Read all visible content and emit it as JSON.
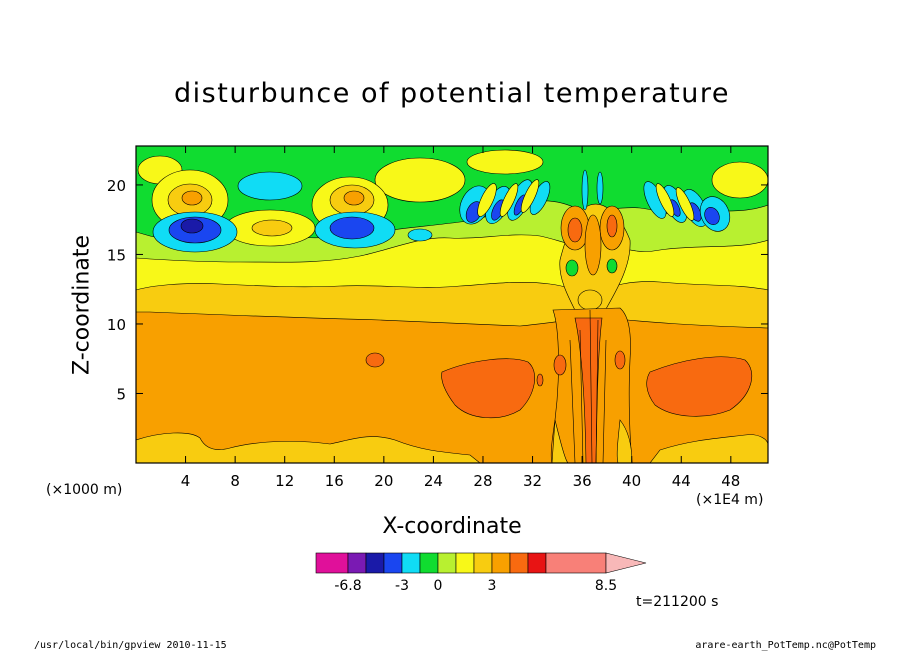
{
  "chart_data": {
    "type": "heatmap",
    "title": "disturbunce of potential temperature",
    "xlabel": "X-coordinate",
    "ylabel": "Z-coordinate",
    "x_unit": "(×1000 m)",
    "x_unit_right": "(×1E4 m)",
    "xlim": [
      0,
      51
    ],
    "ylim": [
      0,
      22.8
    ],
    "x_ticks": [
      4,
      8,
      12,
      16,
      20,
      24,
      28,
      32,
      36,
      40,
      44,
      48
    ],
    "y_ticks": [
      5,
      10,
      15,
      20
    ],
    "colorbar": {
      "colors": [
        "#e0109a",
        "#7a1ab3",
        "#1a1aa8",
        "#1a46f0",
        "#10dcf5",
        "#10dc30",
        "#b8f030",
        "#f8f818",
        "#f8cc10",
        "#f8a000",
        "#f86a10",
        "#e81414",
        "#f88078"
      ],
      "tick_labels": [
        "-6.8",
        "-3",
        "0",
        "3",
        "8.5"
      ]
    },
    "background_level_color": "#f8a000",
    "time_label": "t=211200 s"
  },
  "footer": {
    "left": "/usr/local/bin/gpview  2010-11-15",
    "right": "arare-earth_PotTemp.nc@PotTemp"
  }
}
